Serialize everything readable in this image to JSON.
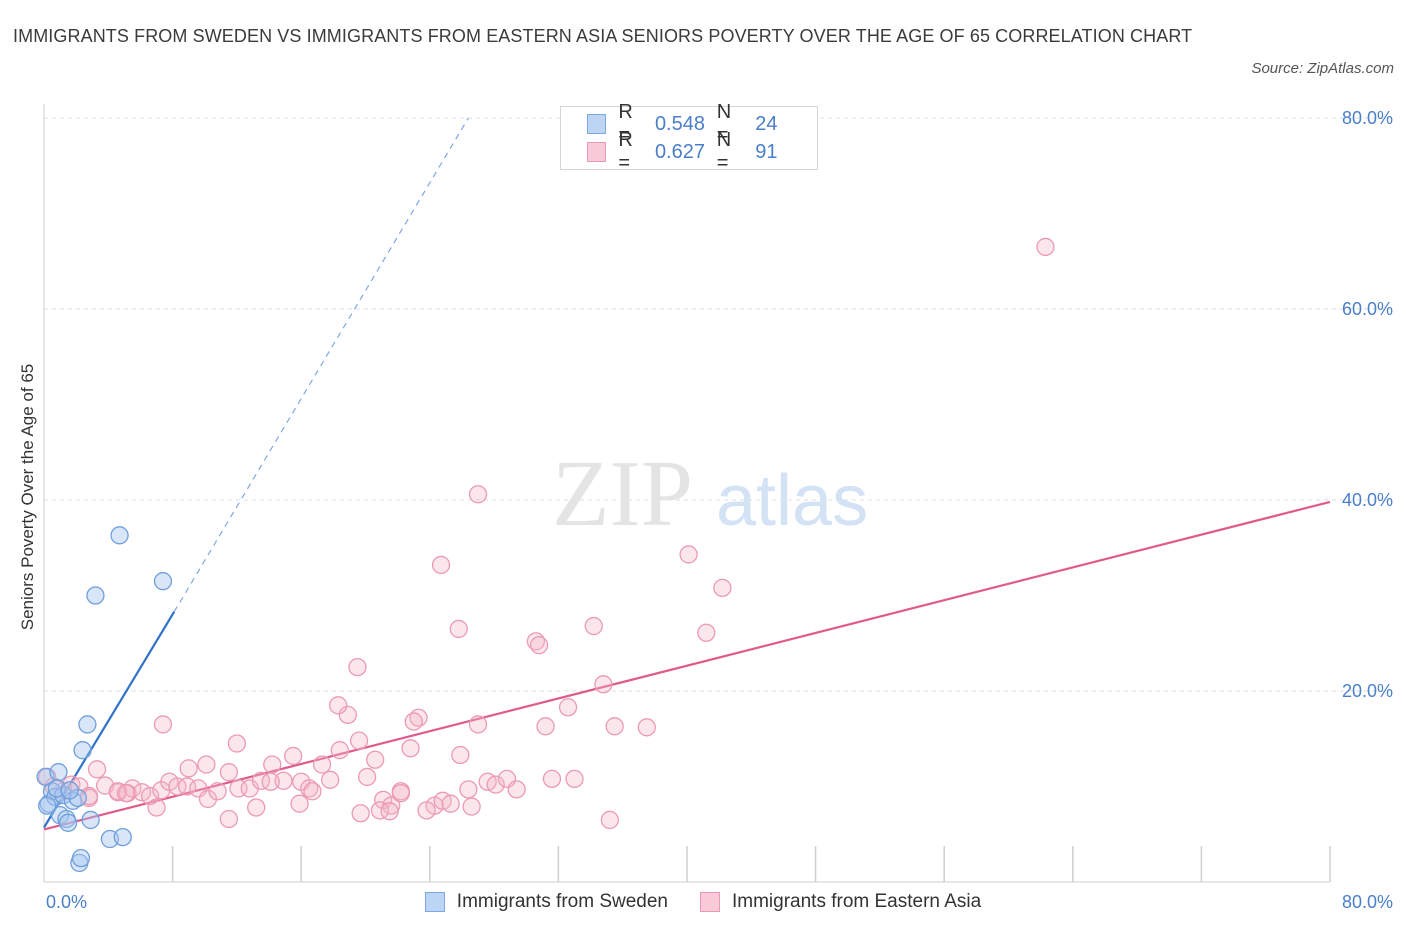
{
  "title": "IMMIGRANTS FROM SWEDEN VS IMMIGRANTS FROM EASTERN ASIA SENIORS POVERTY OVER THE AGE OF 65 CORRELATION CHART",
  "source": "Source: ZipAtlas.com",
  "watermark": {
    "zip": "ZIP",
    "atlas": "atlas"
  },
  "colors": {
    "blue": "#a8c7f0",
    "blue_line": "#2f72c9",
    "pink": "#f4b6c8",
    "pink_line": "#e05a8c",
    "tick_label": "#4a7fc9"
  },
  "legend_top": [
    {
      "r_label": "R =",
      "r_value": "0.548",
      "n_label": "N =",
      "n_value": "24"
    },
    {
      "r_label": "R =",
      "r_value": "0.627",
      "n_label": "N =",
      "n_value": "91"
    }
  ],
  "legend_bottom": [
    "Immigrants from Sweden",
    "Immigrants from Eastern Asia"
  ],
  "chart_data": {
    "type": "scatter",
    "title": "IMMIGRANTS FROM SWEDEN VS IMMIGRANTS FROM EASTERN ASIA SENIORS POVERTY OVER THE AGE OF 65 CORRELATION CHART",
    "xlabel": "",
    "ylabel": "Seniors Poverty Over the Age of 65",
    "xlim": [
      0,
      80
    ],
    "ylim": [
      0,
      80
    ],
    "x_tick_labels": [
      "0.0%",
      "80.0%"
    ],
    "y_tick_labels": [
      "20.0%",
      "40.0%",
      "60.0%",
      "80.0%"
    ],
    "y_ticks": [
      20,
      40,
      60,
      80
    ],
    "grid": true,
    "legend_position": "top-center",
    "series": [
      {
        "name": "Immigrants from Sweden",
        "color": "#a8c7f0",
        "points": [
          [
            0.1,
            11.0
          ],
          [
            0.3,
            8.2
          ],
          [
            0.5,
            9.5
          ],
          [
            0.7,
            8.9
          ],
          [
            0.9,
            11.5
          ],
          [
            1.0,
            7.0
          ],
          [
            1.2,
            9.1
          ],
          [
            1.4,
            6.6
          ],
          [
            1.5,
            6.2
          ],
          [
            1.8,
            8.5
          ],
          [
            2.1,
            8.8
          ],
          [
            2.2,
            2.0
          ],
          [
            2.3,
            2.5
          ],
          [
            2.4,
            13.8
          ],
          [
            2.7,
            16.5
          ],
          [
            2.9,
            6.5
          ],
          [
            3.2,
            30.0
          ],
          [
            4.1,
            4.5
          ],
          [
            4.7,
            36.3
          ],
          [
            4.9,
            4.7
          ],
          [
            7.4,
            31.5
          ],
          [
            0.2,
            8.0
          ],
          [
            0.8,
            9.8
          ],
          [
            1.6,
            9.6
          ]
        ],
        "trend": {
          "x": [
            0,
            8.1
          ],
          "y": [
            5.7,
            28.3
          ],
          "dashed_to": [
            26.4,
            80.0
          ]
        }
      },
      {
        "name": "Immigrants from Eastern Asia",
        "color": "#f4b6c8",
        "points": [
          [
            0.2,
            11.0
          ],
          [
            0.6,
            10.0
          ],
          [
            1.2,
            9.5
          ],
          [
            1.7,
            10.2
          ],
          [
            2.2,
            10.0
          ],
          [
            2.8,
            8.8
          ],
          [
            3.3,
            11.8
          ],
          [
            3.8,
            10.1
          ],
          [
            4.6,
            9.4
          ],
          [
            5.2,
            9.3
          ],
          [
            5.5,
            9.8
          ],
          [
            6.1,
            9.4
          ],
          [
            6.6,
            9.0
          ],
          [
            7.3,
            9.6
          ],
          [
            7.8,
            10.5
          ],
          [
            8.3,
            10.0
          ],
          [
            8.9,
            10.0
          ],
          [
            9.6,
            9.8
          ],
          [
            10.2,
            8.7
          ],
          [
            10.8,
            9.5
          ],
          [
            11.5,
            11.5
          ],
          [
            12.1,
            9.8
          ],
          [
            12.8,
            9.8
          ],
          [
            13.5,
            10.6
          ],
          [
            14.2,
            12.3
          ],
          [
            14.9,
            10.6
          ],
          [
            15.5,
            13.2
          ],
          [
            16.0,
            10.5
          ],
          [
            16.5,
            9.8
          ],
          [
            17.3,
            12.3
          ],
          [
            17.8,
            10.7
          ],
          [
            18.4,
            13.8
          ],
          [
            18.9,
            17.5
          ],
          [
            19.6,
            14.8
          ],
          [
            20.1,
            11.0
          ],
          [
            20.6,
            12.8
          ],
          [
            21.1,
            8.6
          ],
          [
            21.6,
            8.0
          ],
          [
            22.2,
            9.5
          ],
          [
            22.8,
            14.0
          ],
          [
            23.3,
            17.2
          ],
          [
            24.3,
            8.0
          ],
          [
            24.8,
            8.5
          ],
          [
            25.9,
            13.3
          ],
          [
            26.4,
            9.7
          ],
          [
            27.0,
            16.5
          ],
          [
            27.6,
            10.5
          ],
          [
            28.1,
            10.2
          ],
          [
            28.8,
            10.8
          ],
          [
            29.4,
            9.7
          ],
          [
            30.6,
            25.2
          ],
          [
            31.2,
            16.3
          ],
          [
            31.6,
            10.8
          ],
          [
            32.6,
            18.3
          ],
          [
            34.2,
            26.8
          ],
          [
            35.5,
            16.3
          ],
          [
            37.5,
            16.2
          ],
          [
            40.1,
            34.3
          ],
          [
            41.2,
            26.1
          ],
          [
            42.2,
            30.8
          ],
          [
            27.0,
            40.6
          ],
          [
            24.7,
            33.2
          ],
          [
            25.8,
            26.5
          ],
          [
            19.5,
            22.5
          ],
          [
            18.3,
            18.5
          ],
          [
            23.0,
            16.8
          ],
          [
            34.8,
            20.7
          ],
          [
            12.0,
            14.5
          ],
          [
            7.4,
            16.5
          ],
          [
            10.1,
            12.3
          ],
          [
            13.2,
            7.8
          ],
          [
            11.5,
            6.6
          ],
          [
            7.0,
            7.8
          ],
          [
            15.9,
            8.2
          ],
          [
            19.7,
            7.2
          ],
          [
            20.9,
            7.5
          ],
          [
            23.8,
            7.5
          ],
          [
            25.3,
            8.2
          ],
          [
            16.7,
            9.5
          ],
          [
            9.0,
            11.9
          ],
          [
            4.6,
            9.5
          ],
          [
            30.8,
            24.8
          ],
          [
            35.2,
            6.5
          ],
          [
            33.0,
            10.8
          ],
          [
            62.3,
            66.5
          ],
          [
            26.6,
            7.9
          ],
          [
            22.2,
            9.3
          ],
          [
            21.5,
            7.4
          ],
          [
            14.1,
            10.5
          ],
          [
            5.1,
            9.3
          ],
          [
            2.8,
            9.0
          ]
        ],
        "trend": {
          "x": [
            0,
            80
          ],
          "y": [
            5.5,
            39.8
          ]
        }
      }
    ]
  }
}
